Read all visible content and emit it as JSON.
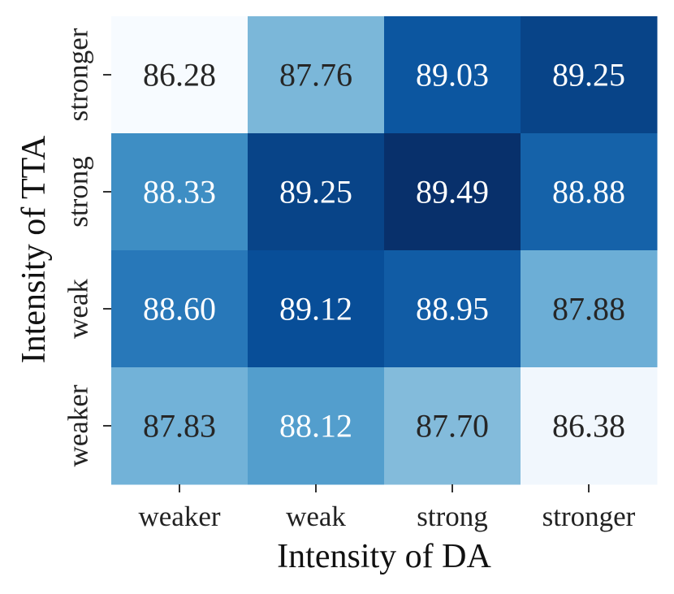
{
  "chart_data": {
    "type": "heatmap",
    "xlabel": "Intensity of DA",
    "ylabel": "Intensity of TTA",
    "x_categories": [
      "weaker",
      "weak",
      "strong",
      "stronger"
    ],
    "y_categories": [
      "stronger",
      "strong",
      "weak",
      "weaker"
    ],
    "values": [
      [
        86.28,
        87.76,
        89.03,
        89.25
      ],
      [
        88.33,
        89.25,
        89.49,
        88.88
      ],
      [
        88.6,
        89.12,
        88.95,
        87.88
      ],
      [
        87.83,
        88.12,
        87.7,
        86.38
      ]
    ],
    "value_labels": [
      [
        "86.28",
        "87.76",
        "89.03",
        "89.25"
      ],
      [
        "88.33",
        "89.25",
        "89.49",
        "88.88"
      ],
      [
        "88.60",
        "89.12",
        "88.95",
        "87.88"
      ],
      [
        "87.83",
        "88.12",
        "87.70",
        "86.38"
      ]
    ],
    "vmin": 86.28,
    "vmax": 89.49,
    "colormap": "Blues",
    "colors": {
      "low": "#f7fbff",
      "mid": "#6baed6",
      "high": "#08306b",
      "text_dark": "#262626",
      "text_light": "#ffffff"
    },
    "grid": false,
    "legend": "none"
  }
}
